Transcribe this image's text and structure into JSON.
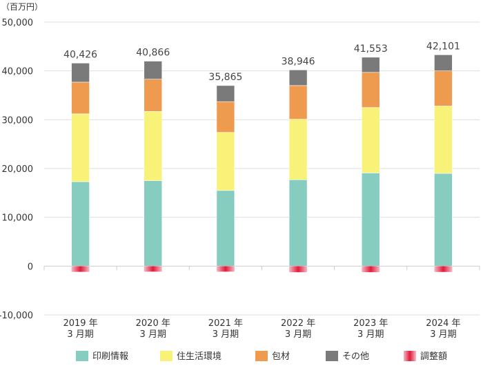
{
  "chart_data": {
    "type": "bar",
    "stacked": true,
    "unit_label": "（百万円）",
    "categories": [
      [
        "2019 年",
        "3 月期"
      ],
      [
        "2020 年",
        "3 月期"
      ],
      [
        "2021 年",
        "3 月期"
      ],
      [
        "2022 年",
        "3 月期"
      ],
      [
        "2023 年",
        "3 月期"
      ],
      [
        "2024 年",
        "3 月期"
      ]
    ],
    "ylim": [
      -10000,
      50000
    ],
    "yticks": [
      -10000,
      0,
      10000,
      20000,
      30000,
      40000,
      50000
    ],
    "ytick_labels": [
      "-10,000",
      "0",
      "10,000",
      "20,000",
      "30,000",
      "40,000",
      "50,000"
    ],
    "grid": true,
    "legend_position": "bottom",
    "series": [
      {
        "name": "印刷情報",
        "color": "#86cdc0",
        "values": [
          17300,
          17500,
          15500,
          17700,
          19100,
          19000
        ]
      },
      {
        "name": "住生活環境",
        "color": "#f8f278",
        "values": [
          13900,
          14200,
          11900,
          12400,
          13400,
          13800
        ]
      },
      {
        "name": "包材",
        "color": "#ee9a4f",
        "values": [
          6500,
          6600,
          6300,
          6900,
          7200,
          7200
        ]
      },
      {
        "name": "その他",
        "color": "#7a7a7a",
        "values": [
          3900,
          3700,
          3300,
          3200,
          3100,
          3300
        ]
      },
      {
        "name": "調整額",
        "color": "#e8243f",
        "values": [
          -1174,
          -1134,
          -1135,
          -1254,
          -1247,
          -1199
        ]
      }
    ],
    "totals": [
      40426,
      40866,
      35865,
      38946,
      41553,
      42101
    ],
    "total_labels": [
      "40,426",
      "40,866",
      "35,865",
      "38,946",
      "41,553",
      "42,101"
    ]
  }
}
